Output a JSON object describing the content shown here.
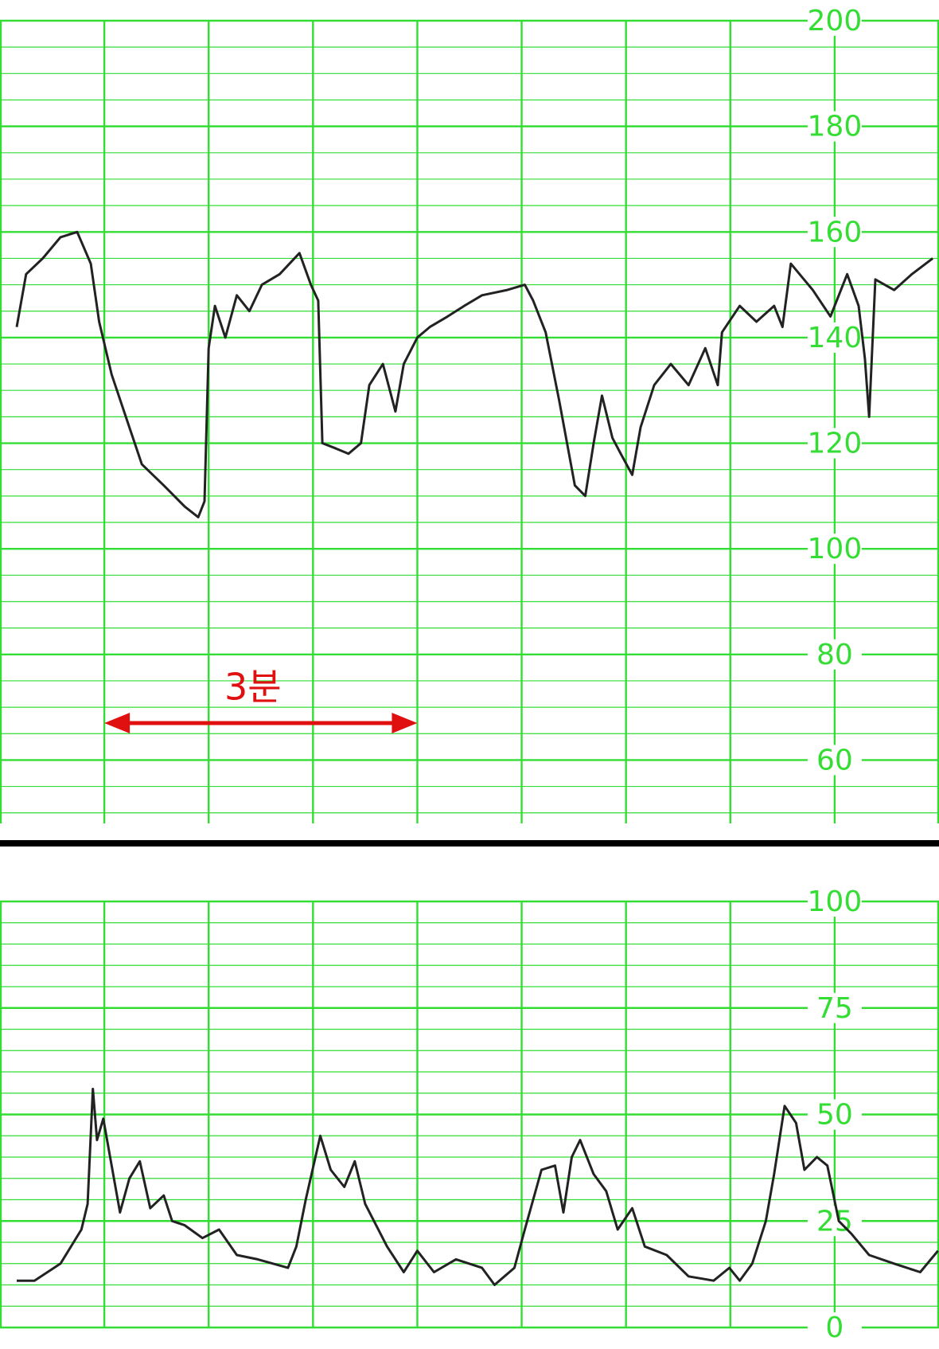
{
  "chart_data": [
    {
      "type": "line",
      "color": "#222222",
      "grid_color": "#33dd33",
      "grid": true,
      "minor_grid_step": 5,
      "xlim": [
        0,
        9
      ],
      "xticks": [
        0,
        1,
        2,
        3,
        4,
        5,
        6,
        7,
        8,
        9
      ],
      "ylim": [
        48,
        200
      ],
      "yticks": [
        60,
        80,
        100,
        120,
        140,
        160,
        180,
        200
      ],
      "x": [
        0.16,
        0.25,
        0.41,
        0.58,
        0.74,
        0.87,
        0.95,
        1.07,
        1.24,
        1.36,
        1.57,
        1.77,
        1.9,
        1.96,
        2.0,
        2.06,
        2.16,
        2.27,
        2.39,
        2.51,
        2.68,
        2.87,
        2.98,
        3.05,
        3.09,
        3.22,
        3.34,
        3.46,
        3.54,
        3.67,
        3.79,
        3.87,
        4.0,
        4.12,
        4.29,
        4.45,
        4.62,
        4.86,
        5.03,
        5.11,
        5.23,
        5.36,
        5.51,
        5.61,
        5.69,
        5.77,
        5.87,
        5.95,
        6.06,
        6.14,
        6.27,
        6.43,
        6.6,
        6.76,
        6.88,
        6.92,
        7.09,
        7.25,
        7.42,
        7.5,
        7.58,
        7.79,
        7.96,
        8.12,
        8.23,
        8.29,
        8.33,
        8.39,
        8.57,
        8.74,
        8.94
      ],
      "values": [
        142,
        152,
        155,
        159,
        160,
        154,
        143,
        133,
        123,
        116,
        112,
        108,
        106,
        109,
        138,
        146,
        140,
        148,
        145,
        150,
        152,
        156,
        150,
        147,
        120,
        119,
        118,
        120,
        131,
        135,
        126,
        135,
        140,
        142,
        144,
        146,
        148,
        149,
        150,
        147,
        141,
        128,
        112,
        110,
        120,
        129,
        121,
        118,
        114,
        123,
        131,
        135,
        131,
        138,
        131,
        141,
        146,
        143,
        146,
        142,
        154,
        149,
        144,
        152,
        146,
        136,
        125,
        151,
        149,
        152,
        155
      ],
      "annotation": {
        "text": "3분",
        "x": [
          1,
          4
        ],
        "y": 67,
        "color": "#e01010"
      }
    },
    {
      "type": "line",
      "color": "#222222",
      "grid_color": "#33dd33",
      "grid": true,
      "minor_grid_step": 5,
      "xlim": [
        0,
        9
      ],
      "xticks": [
        0,
        1,
        2,
        3,
        4,
        5,
        6,
        7,
        8,
        9
      ],
      "ylim": [
        0,
        100
      ],
      "yticks": [
        0,
        25,
        50,
        75,
        100
      ],
      "x": [
        0.16,
        0.33,
        0.58,
        0.78,
        0.84,
        0.89,
        0.93,
        0.99,
        1.07,
        1.15,
        1.24,
        1.34,
        1.44,
        1.57,
        1.65,
        1.77,
        1.94,
        2.1,
        2.27,
        2.47,
        2.76,
        2.84,
        2.93,
        3.07,
        3.17,
        3.3,
        3.4,
        3.5,
        3.71,
        3.87,
        4.0,
        4.16,
        4.37,
        4.62,
        4.74,
        4.93,
        5.03,
        5.19,
        5.32,
        5.4,
        5.48,
        5.56,
        5.69,
        5.81,
        5.92,
        6.06,
        6.18,
        6.39,
        6.6,
        6.84,
        6.99,
        7.09,
        7.21,
        7.34,
        7.42,
        7.52,
        7.63,
        7.71,
        7.83,
        7.93,
        8.04,
        8.16,
        8.33,
        8.57,
        8.82,
        8.99
      ],
      "values": [
        11,
        11,
        15,
        23,
        29,
        56,
        44,
        49,
        38,
        27,
        35,
        39,
        28,
        31,
        25,
        24,
        21,
        23,
        17,
        16,
        14,
        19,
        30,
        45,
        37,
        33,
        39,
        29,
        19,
        13,
        18,
        13,
        16,
        14,
        10,
        14,
        23,
        37,
        38,
        27,
        40,
        44,
        36,
        32,
        23,
        28,
        19,
        17,
        12,
        11,
        14,
        11,
        15,
        25,
        36,
        52,
        48,
        37,
        40,
        38,
        25,
        22,
        17,
        15,
        13,
        18
      ]
    }
  ]
}
